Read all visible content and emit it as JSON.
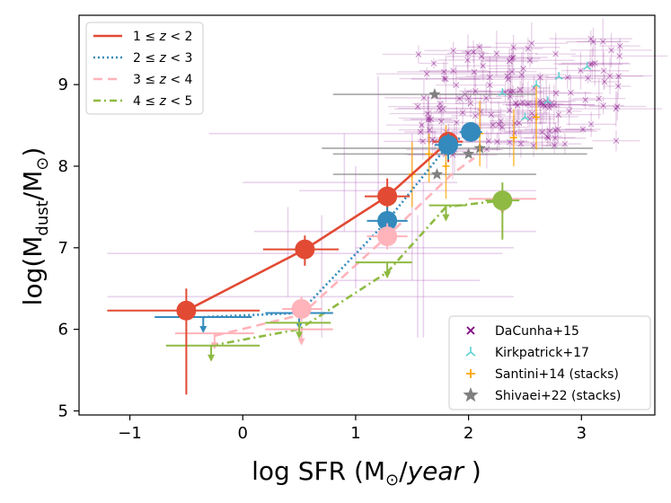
{
  "chart_data": {
    "type": "scatter",
    "xlabel_parts": {
      "main": "log SFR (M",
      "sun": "⊙",
      "slash": "/",
      "unit": "year",
      "close": " )"
    },
    "ylabel_parts": {
      "main": "log(M",
      "sub": "dust",
      "mid": "/M",
      "sun": "⊙",
      "close": ")"
    },
    "xlim": [
      -1.45,
      3.65
    ],
    "ylim": [
      4.95,
      9.85
    ],
    "xticks": [
      -1,
      0,
      1,
      2,
      3
    ],
    "yticks": [
      5,
      6,
      7,
      8,
      9
    ],
    "grid": false,
    "legend_top": [
      {
        "label_parts": [
          "1 ≤ ",
          "z",
          " < 2"
        ],
        "color": "#e24a33",
        "dash": "solid"
      },
      {
        "label_parts": [
          "2 ≤ ",
          "z",
          " < 3"
        ],
        "color": "#348abd",
        "dash": "dotted"
      },
      {
        "label_parts": [
          "3 ≤ ",
          "z",
          " < 4"
        ],
        "color": "#ffb3ba",
        "dash": "dashed"
      },
      {
        "label_parts": [
          "4 ≤ ",
          "z",
          " < 5"
        ],
        "color": "#8eba42",
        "dash": "dashdot"
      }
    ],
    "legend_bottom": [
      {
        "label": "DaCunha+15",
        "marker": "x",
        "color": "#800080"
      },
      {
        "label": "Kirkpatrick+17",
        "marker": "tri",
        "color": "#5bd0d0"
      },
      {
        "label": "Santini+14 (stacks)",
        "marker": "plus",
        "color": "#ffa500"
      },
      {
        "label": "Shivaei+22 (stacks)",
        "marker": "star",
        "color": "#808080"
      }
    ],
    "series": [
      {
        "color": "#e24a33",
        "dash": "solid",
        "x": [
          -0.5,
          0.55,
          1.28,
          1.82
        ],
        "y": [
          6.23,
          6.98,
          7.63,
          8.3
        ]
      },
      {
        "color": "#348abd",
        "dash": "dotted",
        "x": [
          -0.35,
          0.5,
          1.28,
          1.82,
          2.02
        ],
        "y": [
          6.15,
          6.2,
          7.33,
          8.26,
          8.42
        ]
      },
      {
        "color": "#ffb3ba",
        "dash": "dashed",
        "x": [
          -0.25,
          0.52,
          1.28,
          1.85,
          2.05
        ],
        "y": [
          5.92,
          6.18,
          7.14,
          7.9,
          8.1
        ]
      },
      {
        "color": "#8eba42",
        "dash": "dashdot",
        "x": [
          -0.28,
          0.5,
          1.28,
          1.8,
          2.3
        ],
        "y": [
          5.8,
          6.0,
          6.7,
          7.5,
          7.58
        ]
      }
    ],
    "points": [
      {
        "color": "#e24a33",
        "x": -0.5,
        "y": 6.23,
        "xlo": -1.2,
        "xhi": 0.15,
        "ylo": 5.2,
        "yhi": 6.5
      },
      {
        "color": "#e24a33",
        "x": 0.55,
        "y": 6.98,
        "xlo": 0.18,
        "xhi": 0.85,
        "ylo": 6.78,
        "yhi": 7.15
      },
      {
        "color": "#e24a33",
        "x": 1.28,
        "y": 7.63,
        "xlo": 1.08,
        "xhi": 1.48,
        "ylo": 7.4,
        "yhi": 7.85
      },
      {
        "color": "#e24a33",
        "x": 1.82,
        "y": 8.3,
        "xlo": 1.68,
        "xhi": 1.95,
        "ylo": 8.05,
        "yhi": 8.42
      },
      {
        "color": "#348abd",
        "x": 1.28,
        "y": 7.33,
        "xlo": 1.1,
        "xhi": 1.46,
        "ylo": 7.15,
        "yhi": 7.5
      },
      {
        "color": "#348abd",
        "x": 1.82,
        "y": 8.26,
        "xlo": 1.7,
        "xhi": 1.94,
        "ylo": 8.08,
        "yhi": 8.4
      },
      {
        "color": "#348abd",
        "x": 2.02,
        "y": 8.42,
        "xlo": 1.92,
        "xhi": 2.12,
        "ylo": 8.3,
        "yhi": 8.52
      },
      {
        "color": "#ffb3ba",
        "x": 0.52,
        "y": 6.25,
        "xlo": 0.35,
        "xhi": 0.7,
        "ylo": 6.1,
        "yhi": 6.4
      },
      {
        "color": "#ffb3ba",
        "x": 1.28,
        "y": 7.14,
        "xlo": 1.1,
        "xhi": 1.46,
        "ylo": 6.98,
        "yhi": 7.3
      },
      {
        "color": "#8eba42",
        "x": 2.3,
        "y": 7.58,
        "xlo": 2.15,
        "xhi": 2.45,
        "ylo": 7.1,
        "yhi": 7.8
      }
    ],
    "upper_limits": [
      {
        "color": "#348abd",
        "x": -0.35,
        "y": 6.15,
        "xlo": -0.78,
        "xhi": 0.08
      },
      {
        "color": "#348abd",
        "x": 0.5,
        "y": 6.2,
        "xlo": 0.2,
        "xhi": 0.8
      },
      {
        "color": "#ffb3ba",
        "x": -0.25,
        "y": 5.95,
        "xlo": -0.6,
        "xhi": 0.1
      },
      {
        "color": "#ffb3ba",
        "x": 0.52,
        "y": 6.0,
        "xlo": 0.2,
        "xhi": 0.8
      },
      {
        "color": "#ffb3ba",
        "x": 2.3,
        "y": 7.6,
        "xlo": 2.0,
        "xhi": 2.6
      },
      {
        "color": "#8eba42",
        "x": -0.28,
        "y": 5.8,
        "xlo": -0.68,
        "xhi": 0.15
      },
      {
        "color": "#8eba42",
        "x": 0.5,
        "y": 6.08,
        "xlo": 0.2,
        "xhi": 0.78
      },
      {
        "color": "#8eba42",
        "x": 1.28,
        "y": 6.82,
        "xlo": 1.0,
        "xhi": 1.5
      },
      {
        "color": "#8eba42",
        "x": 1.8,
        "y": 7.52,
        "xlo": 1.65,
        "xhi": 1.98
      }
    ],
    "dacunha_scatter": {
      "color": "#800080",
      "n": 140,
      "xmin": 1.55,
      "xmax": 3.4,
      "ymin": 8.2,
      "ymax": 9.5
    },
    "dacunha_wide_errors": [
      {
        "x": 0.7,
        "y": 6.4,
        "xlo": -1.2,
        "xhi": 2.4,
        "ylo": 5.9,
        "yhi": 7.4
      },
      {
        "x": 1.0,
        "y": 7.2,
        "xlo": 0.1,
        "xhi": 2.6,
        "ylo": 6.5,
        "yhi": 8.0
      },
      {
        "x": 0.4,
        "y": 6.93,
        "xlo": -1.2,
        "xhi": 2.3,
        "ylo": 6.4,
        "yhi": 7.5
      },
      {
        "x": 1.5,
        "y": 7.7,
        "xlo": 0.5,
        "xhi": 2.6,
        "ylo": 6.6,
        "yhi": 8.4
      },
      {
        "x": 1.2,
        "y": 8.4,
        "xlo": -0.3,
        "xhi": 2.8,
        "ylo": 7.6,
        "yhi": 9.1
      },
      {
        "x": 1.6,
        "y": 7.0,
        "xlo": 1.0,
        "xhi": 2.4,
        "ylo": 5.9,
        "yhi": 7.8
      },
      {
        "x": 1.55,
        "y": 6.6,
        "xlo": 0.8,
        "xhi": 2.1,
        "ylo": 5.9,
        "yhi": 7.4
      },
      {
        "x": 0.9,
        "y": 7.8,
        "xlo": 0.0,
        "xhi": 1.9,
        "ylo": 7.2,
        "yhi": 8.4
      }
    ],
    "shivaei": [
      {
        "x": 1.7,
        "y": 8.88,
        "xlo": 0.8,
        "xhi": 2.6,
        "color": "#808080"
      },
      {
        "x": 2.0,
        "y": 8.15,
        "xlo": 0.8,
        "xhi": 3.05,
        "color": "#808080"
      },
      {
        "x": 2.1,
        "y": 8.22,
        "xlo": 0.7,
        "xhi": 3.1,
        "color": "#808080"
      },
      {
        "x": 1.72,
        "y": 7.9,
        "xlo": 0.8,
        "xhi": 2.6,
        "color": "#808080"
      }
    ],
    "santini": [
      {
        "x": 1.5,
        "y": 7.9,
        "ylo": 7.5,
        "yhi": 8.3
      },
      {
        "x": 1.8,
        "y": 8.0,
        "ylo": 7.6,
        "yhi": 8.5
      },
      {
        "x": 2.1,
        "y": 8.4,
        "ylo": 8.0,
        "yhi": 8.8
      },
      {
        "x": 2.4,
        "y": 8.35,
        "ylo": 8.0,
        "yhi": 8.7
      },
      {
        "x": 2.6,
        "y": 8.6,
        "ylo": 8.2,
        "yhi": 9.0
      },
      {
        "x": 1.65,
        "y": 8.15,
        "ylo": 7.8,
        "yhi": 8.4
      }
    ],
    "kirkpatrick": [
      {
        "x": 2.3,
        "y": 8.9
      },
      {
        "x": 2.6,
        "y": 9.0
      },
      {
        "x": 2.8,
        "y": 9.1
      },
      {
        "x": 2.5,
        "y": 8.6
      },
      {
        "x": 3.05,
        "y": 9.22
      },
      {
        "x": 2.7,
        "y": 8.8
      }
    ]
  }
}
